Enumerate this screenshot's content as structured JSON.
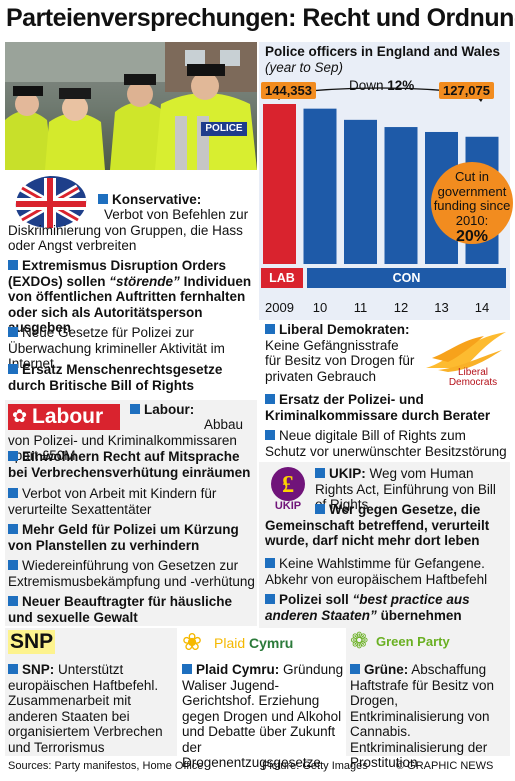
{
  "title": "Parteienversprechungen: Recht und Ordnung",
  "photo": {
    "police_badge": "POLICE"
  },
  "chart_data": {
    "type": "bar",
    "title": "Police officers in England and Wales",
    "subtitle": "(year to Sep)",
    "categories": [
      "2009",
      "10",
      "11",
      "12",
      "13",
      "14"
    ],
    "values": [
      144353,
      141900,
      136000,
      132200,
      129600,
      127075
    ],
    "ylim": [
      0,
      150000
    ],
    "first_label": "144,353",
    "last_label": "127,075",
    "down_label": "Down",
    "down_value": "12%",
    "eras": {
      "lab": "LAB",
      "con": "CON"
    },
    "callout_text": "Cut in government funding since 2010:",
    "callout_value": "20%",
    "colors": {
      "lab": "#d9232e",
      "con": "#1e5aa8",
      "accent": "#f28c1f"
    }
  },
  "conservative": {
    "b1_head": "Konservative:",
    "b1_text": "Verbot von Befehlen zur Diskriminierung von Gruppen, die Hass oder Angst verbreiten",
    "b2_a": "Extremismus Disruption Orders (EXDOs) sollen",
    "b2_em": "“störende”",
    "b2_b": "Individuen von öffentlichen Auftritten fernhalten oder sich als Autoritätsperson ausgeben",
    "b3": "Neue Gesetze für Polizei zur Überwachung krimineller Aktivität im Internet",
    "b4": "Ersatz Menschenrechtsgesetze durch Britische Bill of Rights"
  },
  "libdem": {
    "logo": "Liberal Democrats",
    "b1_head": "Liberal Demokraten:",
    "b1_text": "Keine Gefängnisstrafe für Besitz von Drogen für privaten Gebrauch",
    "b2": "Ersatz der Polizei- und Kriminalkommissare durch Berater",
    "b3": "Neue digitale Bill of Rights zum Schutz vor unerwünschter Besitzstörung"
  },
  "labour": {
    "logo": "Labour",
    "b1_head": "Labour:",
    "b1_text": "Abbau von Polizei- und Kriminalkommissaren spart £50M",
    "b2": "Einwohnern Recht auf Mitsprache bei Verbrechensverhütung einräumen",
    "b3": "Verbot von Arbeit mit Kindern für verurteilte Sexattentäter",
    "b4": "Mehr Geld für Polizei um Kürzung von Planstellen zu verhindern",
    "b5": "Wiedereinführung von Gesetzen zur Extremismusbekämpfung und -verhütung",
    "b6": "Neuer Beauftragter für häusliche und sexuelle Gewalt"
  },
  "ukip": {
    "logo": "UKIP",
    "b1_head": "UKIP:",
    "b1_text": "Weg vom Human Rights Act, Einführung von Bill of Rights",
    "b2": "Wer gegen Gesetze, die Gemeinschaft betreffend, verurteilt wurde, darf nicht mehr dort leben",
    "b3": "Keine Wahlstimme für Gefangene. Abkehr von europäischem Haftbefehl",
    "b4_a": "Polizei soll",
    "b4_em": "“best practice aus anderen Staaten”",
    "b4_b": "übernehmen"
  },
  "snp": {
    "logo": "SNP",
    "head": "SNP:",
    "text": "Unterstützt europäischen Haftbefehl. Zusammenarbeit mit anderen Staaten bei organisiertem Verbrechen und Terrorismus"
  },
  "plaid": {
    "logo_a": "Plaid",
    "logo_b": "Cymru",
    "head": "Plaid Cymru:",
    "text": "Gründung Waliser Jugend-Gerichtshof. Erziehung gegen Drogen und Alkohol und Debatte über Zukunft der Drogenentzugsgesetze"
  },
  "green": {
    "logo": "Green Party",
    "head": "Grüne:",
    "text": "Abschaffung Haftstrafe für Besitz von Drogen, Entkriminalisierung von Cannabis. Entkriminalisierung der Prostitution"
  },
  "footer": {
    "sources": "Sources: Party manifestos, Home Office",
    "picture": "Picture: Getty Images",
    "credit": "© GRAPHIC NEWS"
  }
}
